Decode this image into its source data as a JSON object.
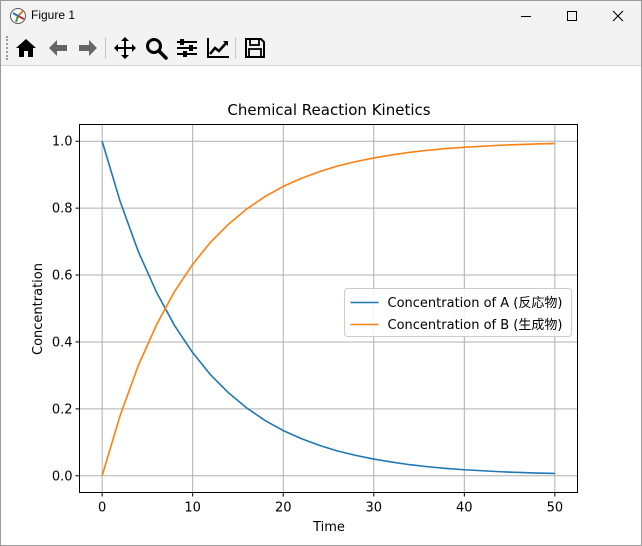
{
  "window": {
    "title": "Figure 1",
    "controls": [
      "minimize-icon",
      "maximize-icon",
      "close-icon"
    ]
  },
  "toolbar": {
    "buttons": [
      {
        "name": "home",
        "icon": "home-icon"
      },
      {
        "name": "back",
        "icon": "arrow-left-icon"
      },
      {
        "name": "forward",
        "icon": "arrow-right-icon"
      },
      {
        "name": "pan",
        "icon": "move-icon"
      },
      {
        "name": "zoom",
        "icon": "magnifier-icon"
      },
      {
        "name": "configure-subplots",
        "icon": "sliders-icon"
      },
      {
        "name": "edit-axis",
        "icon": "line-chart-icon"
      },
      {
        "name": "save",
        "icon": "floppy-disk-icon"
      }
    ]
  },
  "colors": {
    "series_a": "#1f77b4",
    "series_b": "#ff7f0e",
    "grid": "#b0b0b0",
    "titlebar": "#f3f3f3"
  },
  "chart_data": {
    "type": "line",
    "title": "Chemical Reaction Kinetics",
    "xlabel": "Time",
    "ylabel": "Concentration",
    "xlim": [
      -2.5,
      52.5
    ],
    "ylim": [
      -0.05,
      1.05
    ],
    "xticks": [
      "0",
      "10",
      "20",
      "30",
      "40",
      "50"
    ],
    "yticks": [
      "0.0",
      "0.2",
      "0.4",
      "0.6",
      "0.8",
      "1.0"
    ],
    "grid": true,
    "legend_position": "center-right",
    "x": [
      0,
      2,
      4,
      6,
      8,
      10,
      12,
      14,
      16,
      18,
      20,
      22,
      24,
      26,
      28,
      30,
      32,
      34,
      36,
      38,
      40,
      42,
      44,
      46,
      48,
      50
    ],
    "series": [
      {
        "name": "Concentration of A (反応物)",
        "values": [
          1.0,
          0.819,
          0.67,
          0.549,
          0.449,
          0.368,
          0.301,
          0.247,
          0.202,
          0.165,
          0.135,
          0.111,
          0.091,
          0.074,
          0.061,
          0.05,
          0.041,
          0.033,
          0.027,
          0.022,
          0.018,
          0.015,
          0.012,
          0.01,
          0.008,
          0.007
        ]
      },
      {
        "name": "Concentration of B (生成物)",
        "values": [
          0.0,
          0.181,
          0.33,
          0.451,
          0.551,
          0.632,
          0.699,
          0.753,
          0.798,
          0.835,
          0.865,
          0.889,
          0.909,
          0.926,
          0.939,
          0.95,
          0.959,
          0.967,
          0.973,
          0.978,
          0.982,
          0.985,
          0.988,
          0.99,
          0.992,
          0.993
        ]
      }
    ]
  }
}
